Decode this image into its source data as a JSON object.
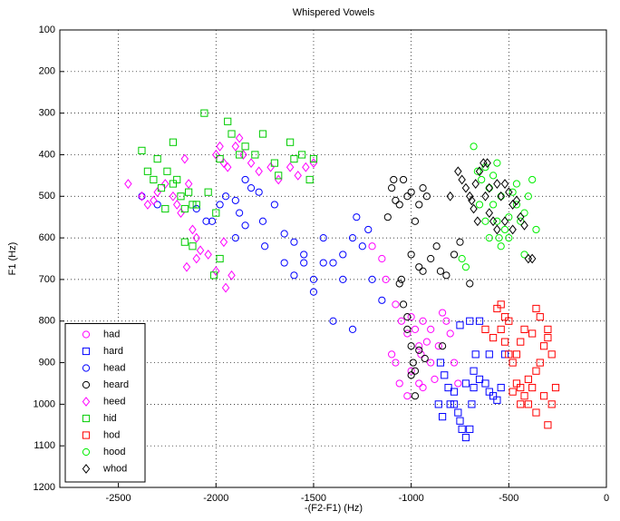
{
  "chart_data": {
    "type": "scatter",
    "title": "Whispered Vowels",
    "x_label": "-(F2-F1) (Hz)",
    "y_label": "F1 (Hz)",
    "xlim": [
      -2800,
      0
    ],
    "ylim": [
      100,
      1200
    ],
    "y_reversed": true,
    "xticks": [
      -2500,
      -2000,
      -1500,
      -1000,
      -500,
      0
    ],
    "yticks": [
      100,
      200,
      300,
      400,
      500,
      600,
      700,
      800,
      900,
      1000,
      1100,
      1200
    ],
    "grid": true,
    "legend": "lower left",
    "series": [
      {
        "name": "had",
        "marker": "circle",
        "color": "#ff00ff",
        "x": [
          -1200,
          -1150,
          -1130,
          -1080,
          -1050,
          -1020,
          -1000,
          -980,
          -960,
          -950,
          -940,
          -920,
          -900,
          -880,
          -860,
          -840,
          -820,
          -800,
          -780,
          -760,
          -1100,
          -1080,
          -1060,
          -1020,
          -1000,
          -960,
          -900,
          -940
        ],
        "y": [
          620,
          650,
          700,
          760,
          800,
          830,
          790,
          820,
          860,
          880,
          800,
          850,
          900,
          940,
          860,
          780,
          800,
          830,
          900,
          950,
          880,
          900,
          950,
          980,
          920,
          950,
          820,
          960
        ]
      },
      {
        "name": "hard",
        "marker": "square",
        "color": "#0000ff",
        "x": [
          -850,
          -830,
          -810,
          -800,
          -780,
          -760,
          -750,
          -740,
          -720,
          -700,
          -690,
          -680,
          -670,
          -650,
          -700,
          -750,
          -620,
          -600,
          -580,
          -560,
          -540,
          -520,
          -600,
          -650,
          -860,
          -840,
          -780,
          -720,
          -680
        ],
        "y": [
          900,
          930,
          960,
          1000,
          970,
          1020,
          1040,
          1060,
          1080,
          1060,
          1000,
          920,
          880,
          800,
          800,
          810,
          950,
          970,
          980,
          990,
          960,
          880,
          880,
          940,
          1000,
          1030,
          1000,
          950,
          960
        ]
      },
      {
        "name": "head",
        "marker": "circle",
        "color": "#0000ff",
        "x": [
          -2380,
          -2300,
          -2100,
          -2050,
          -2020,
          -1980,
          -1950,
          -1900,
          -1880,
          -1850,
          -1820,
          -1780,
          -1760,
          -1700,
          -1650,
          -1600,
          -1550,
          -1500,
          -1450,
          -1400,
          -1350,
          -1300,
          -1280,
          -1250,
          -1220,
          -1200,
          -1150,
          -1400,
          -1300,
          -1500,
          -1900,
          -1850,
          -1750,
          -1650,
          -1600,
          -1550,
          -1450,
          -1350
        ],
        "y": [
          500,
          520,
          530,
          560,
          560,
          520,
          500,
          510,
          540,
          460,
          480,
          490,
          560,
          520,
          590,
          610,
          640,
          700,
          660,
          660,
          640,
          600,
          550,
          620,
          580,
          700,
          750,
          800,
          820,
          730,
          600,
          570,
          620,
          660,
          690,
          660,
          600,
          700
        ]
      },
      {
        "name": "heard",
        "marker": "circle",
        "color": "#000000",
        "x": [
          -1100,
          -1080,
          -1060,
          -1040,
          -1020,
          -1000,
          -980,
          -960,
          -940,
          -920,
          -1120,
          -1000,
          -960,
          -940,
          -900,
          -870,
          -850,
          -820,
          -780,
          -750,
          -700,
          -1050,
          -1040,
          -1020,
          -1000,
          -990,
          -980,
          -960,
          -1000,
          -980,
          -930,
          -840,
          -1020,
          -1090,
          -1060
        ],
        "y": [
          480,
          510,
          520,
          460,
          500,
          490,
          560,
          520,
          480,
          500,
          550,
          640,
          670,
          680,
          650,
          620,
          680,
          690,
          640,
          610,
          710,
          700,
          760,
          790,
          860,
          900,
          920,
          870,
          930,
          980,
          890,
          860,
          820,
          460,
          710
        ]
      },
      {
        "name": "heed",
        "marker": "diamond",
        "color": "#ff00ff",
        "x": [
          -2450,
          -2380,
          -2350,
          -2320,
          -2300,
          -2260,
          -2220,
          -2200,
          -2180,
          -2160,
          -2140,
          -2120,
          -2100,
          -2080,
          -2150,
          -2100,
          -2000,
          -1980,
          -1960,
          -1940,
          -1920,
          -1950,
          -1900,
          -1880,
          -1860,
          -1820,
          -1780,
          -1720,
          -1680,
          -1620,
          -1580,
          -1540,
          -1500,
          -2000,
          -2040,
          -1960
        ],
        "y": [
          470,
          500,
          520,
          510,
          490,
          470,
          500,
          520,
          540,
          410,
          470,
          580,
          600,
          630,
          670,
          650,
          400,
          380,
          420,
          430,
          690,
          720,
          380,
          360,
          400,
          420,
          440,
          430,
          460,
          430,
          450,
          430,
          420,
          680,
          640,
          610
        ]
      },
      {
        "name": "hid",
        "marker": "square",
        "color": "#00cc00",
        "x": [
          -2380,
          -2350,
          -2320,
          -2300,
          -2280,
          -2250,
          -2220,
          -2200,
          -2180,
          -2160,
          -2140,
          -2120,
          -2100,
          -2060,
          -2040,
          -2000,
          -1980,
          -1940,
          -1920,
          -1880,
          -1850,
          -1800,
          -1760,
          -1700,
          -1680,
          -1620,
          -1600,
          -1560,
          -1520,
          -1500,
          -2160,
          -2120,
          -2010,
          -1980,
          -2220,
          -2260
        ],
        "y": [
          390,
          440,
          460,
          410,
          480,
          440,
          370,
          460,
          500,
          530,
          490,
          520,
          520,
          300,
          490,
          540,
          410,
          320,
          350,
          400,
          380,
          400,
          350,
          420,
          450,
          370,
          410,
          400,
          460,
          410,
          610,
          620,
          690,
          650,
          470,
          530
        ]
      },
      {
        "name": "hod",
        "marker": "square",
        "color": "#ff0000",
        "x": [
          -560,
          -540,
          -520,
          -500,
          -480,
          -460,
          -440,
          -420,
          -400,
          -380,
          -360,
          -340,
          -320,
          -300,
          -280,
          -260,
          -300,
          -320,
          -340,
          -360,
          -380,
          -420,
          -440,
          -460,
          -500,
          -520,
          -540,
          -580,
          -620,
          -480,
          -400,
          -280,
          -360,
          -440,
          -300
        ],
        "y": [
          770,
          820,
          850,
          880,
          900,
          950,
          960,
          980,
          1000,
          960,
          920,
          900,
          980,
          1050,
          1000,
          960,
          840,
          860,
          790,
          770,
          830,
          820,
          850,
          880,
          800,
          790,
          760,
          840,
          820,
          970,
          940,
          880,
          1020,
          1000,
          820
        ]
      },
      {
        "name": "hood",
        "marker": "circle",
        "color": "#00ee00",
        "x": [
          -680,
          -660,
          -640,
          -620,
          -600,
          -580,
          -560,
          -550,
          -540,
          -520,
          -500,
          -480,
          -460,
          -440,
          -420,
          -400,
          -380,
          -360,
          -420,
          -740,
          -720,
          -650,
          -620,
          -600,
          -580,
          -560,
          -540,
          -500,
          -460
        ],
        "y": [
          380,
          440,
          460,
          430,
          480,
          520,
          560,
          600,
          620,
          580,
          550,
          490,
          520,
          560,
          540,
          500,
          460,
          580,
          640,
          650,
          670,
          520,
          560,
          600,
          450,
          420,
          500,
          600,
          470
        ]
      },
      {
        "name": "whod",
        "marker": "diamond",
        "color": "#000000",
        "x": [
          -800,
          -760,
          -740,
          -720,
          -700,
          -690,
          -680,
          -670,
          -650,
          -630,
          -610,
          -600,
          -580,
          -560,
          -540,
          -520,
          -500,
          -480,
          -460,
          -440,
          -420,
          -400,
          -380,
          -600,
          -560,
          -520,
          -480,
          -620,
          -660
        ],
        "y": [
          500,
          440,
          460,
          480,
          500,
          510,
          530,
          470,
          440,
          420,
          420,
          540,
          560,
          580,
          500,
          470,
          490,
          520,
          510,
          550,
          570,
          650,
          650,
          480,
          470,
          560,
          580,
          500,
          560
        ]
      }
    ]
  }
}
